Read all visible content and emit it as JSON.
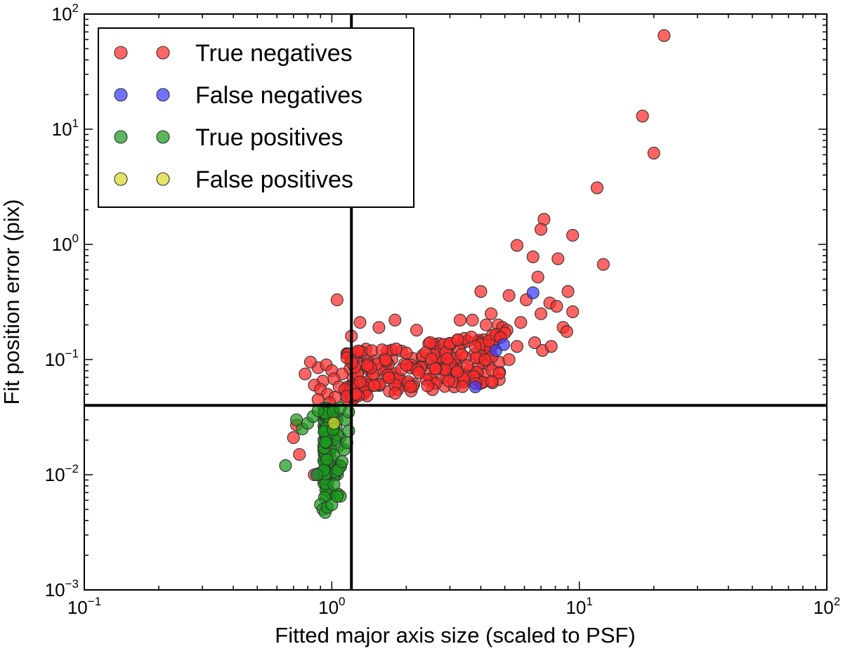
{
  "chart_data": {
    "type": "scatter",
    "xscale": "log",
    "yscale": "log",
    "xlim": [
      0.1,
      100
    ],
    "ylim": [
      0.001,
      100
    ],
    "xlabel": "Fitted major axis size (scaled to PSF)",
    "ylabel": "Fit position error (pix)",
    "x_ticks": [
      {
        "base": "10",
        "exp": "−1"
      },
      {
        "base": "10",
        "exp": "0"
      },
      {
        "base": "10",
        "exp": "1"
      },
      {
        "base": "10",
        "exp": "2"
      }
    ],
    "y_ticks": [
      {
        "base": "10",
        "exp": "−3"
      },
      {
        "base": "10",
        "exp": "−2"
      },
      {
        "base": "10",
        "exp": "−1"
      },
      {
        "base": "10",
        "exp": "0"
      },
      {
        "base": "10",
        "exp": "1"
      },
      {
        "base": "10",
        "exp": "2"
      }
    ],
    "reference_lines": {
      "vertical_x": 1.2,
      "horizontal_y": 0.04
    },
    "legend_position": "top-left",
    "series": [
      {
        "name": "True negatives",
        "color": "#ff2a2a",
        "points": [
          [
            22.0,
            65.0
          ],
          [
            18.0,
            13.0
          ],
          [
            20.0,
            6.2
          ],
          [
            11.8,
            3.1
          ],
          [
            7.2,
            1.65
          ],
          [
            7.0,
            1.35
          ],
          [
            9.4,
            1.2
          ],
          [
            5.6,
            0.98
          ],
          [
            6.5,
            0.78
          ],
          [
            8.2,
            0.75
          ],
          [
            12.5,
            0.67
          ],
          [
            6.8,
            0.52
          ],
          [
            4.0,
            0.39
          ],
          [
            5.2,
            0.36
          ],
          [
            9.0,
            0.39
          ],
          [
            6.1,
            0.33
          ],
          [
            7.6,
            0.31
          ],
          [
            8.1,
            0.29
          ],
          [
            1.05,
            0.33
          ],
          [
            4.4,
            0.25
          ],
          [
            3.7,
            0.22
          ],
          [
            7.0,
            0.25
          ],
          [
            9.4,
            0.26
          ],
          [
            5.8,
            0.21
          ],
          [
            8.6,
            0.19
          ],
          [
            4.2,
            0.2
          ],
          [
            4.7,
            0.2
          ],
          [
            4.9,
            0.19
          ],
          [
            5.1,
            0.18
          ],
          [
            3.3,
            0.22
          ],
          [
            2.2,
            0.18
          ],
          [
            1.8,
            0.22
          ],
          [
            1.55,
            0.19
          ],
          [
            1.3,
            0.21
          ],
          [
            8.9,
            0.175
          ],
          [
            4.6,
            0.165
          ],
          [
            5.0,
            0.17
          ],
          [
            4.8,
            0.155
          ],
          [
            1.2,
            0.16
          ],
          [
            6.6,
            0.14
          ],
          [
            7.1,
            0.12
          ],
          [
            7.7,
            0.13
          ],
          [
            5.6,
            0.13
          ],
          [
            5.2,
            0.1
          ],
          [
            0.88,
            0.085
          ],
          [
            0.95,
            0.09
          ],
          [
            0.78,
            0.075
          ],
          [
            0.82,
            0.095
          ],
          [
            1.0,
            0.08
          ],
          [
            1.1,
            0.075
          ],
          [
            0.92,
            0.065
          ],
          [
            1.02,
            0.068
          ],
          [
            0.85,
            0.06
          ],
          [
            1.07,
            0.058
          ],
          [
            0.9,
            0.055
          ],
          [
            1.13,
            0.055
          ],
          [
            0.96,
            0.05
          ],
          [
            1.03,
            0.047
          ],
          [
            0.88,
            0.045
          ],
          [
            1.15,
            0.048
          ],
          [
            1.25,
            0.05
          ],
          [
            0.98,
            0.042
          ],
          [
            0.74,
            0.015
          ],
          [
            0.7,
            0.021
          ],
          [
            0.72,
            0.027
          ],
          [
            1.08,
            0.012
          ],
          [
            0.98,
            0.0098
          ],
          [
            0.85,
            0.01
          ]
        ],
        "cluster": {
          "x_range": [
            1.15,
            4.8
          ],
          "y_range": [
            0.045,
            0.17
          ],
          "count": 220
        }
      },
      {
        "name": "False negatives",
        "color": "#3a3aff",
        "points": [
          [
            6.5,
            0.38
          ],
          [
            4.6,
            0.12
          ],
          [
            4.95,
            0.135
          ],
          [
            3.8,
            0.058
          ],
          [
            0.88,
            0.0102
          ]
        ]
      },
      {
        "name": "True positives",
        "color": "#1a9a1a",
        "points": [
          [
            0.65,
            0.012
          ],
          [
            0.76,
            0.025
          ],
          [
            0.72,
            0.03
          ],
          [
            0.8,
            0.028
          ],
          [
            0.84,
            0.032
          ],
          [
            0.88,
            0.036
          ],
          [
            0.87,
            0.01
          ],
          [
            0.9,
            0.0055
          ],
          [
            0.92,
            0.005
          ],
          [
            0.94,
            0.0047
          ],
          [
            0.96,
            0.0052
          ],
          [
            1.0,
            0.0055
          ],
          [
            1.05,
            0.0065
          ],
          [
            1.02,
            0.0082
          ],
          [
            1.06,
            0.011
          ],
          [
            1.1,
            0.013
          ],
          [
            1.12,
            0.0165
          ],
          [
            1.15,
            0.019
          ],
          [
            1.17,
            0.024
          ],
          [
            1.13,
            0.03
          ],
          [
            1.17,
            0.035
          ],
          [
            1.08,
            0.038
          ]
        ],
        "cluster": {
          "x_range": [
            0.86,
            1.12
          ],
          "y_range": [
            0.006,
            0.038
          ],
          "count": 130
        }
      },
      {
        "name": "False positives",
        "color": "#d8d82a",
        "points": [
          [
            1.02,
            0.028
          ]
        ]
      }
    ]
  }
}
